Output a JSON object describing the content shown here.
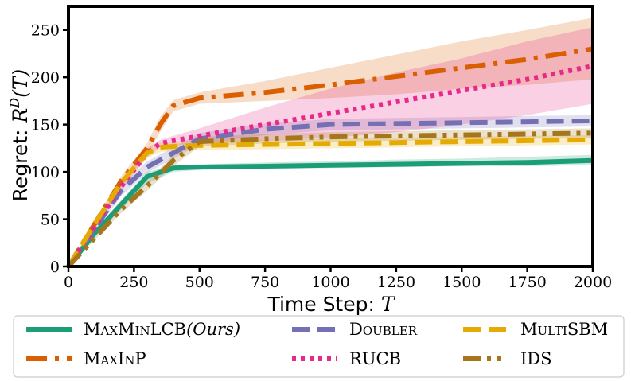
{
  "chart_data": {
    "type": "line",
    "title": "",
    "xlabel": {
      "prefix": "Time Step: ",
      "math": "T"
    },
    "ylabel": {
      "prefix": "Regret: ",
      "math": "R",
      "sup": "D",
      "suffix": "(T)"
    },
    "xlim": [
      0,
      2000
    ],
    "ylim": [
      0,
      275
    ],
    "xticks": [
      0,
      250,
      500,
      750,
      1000,
      1250,
      1500,
      1750,
      2000
    ],
    "yticks": [
      0,
      50,
      100,
      150,
      200,
      250
    ],
    "grid": false,
    "legend_position": "below plot, 3 columns",
    "series": [
      {
        "name": "MaxMinLCB(Ours)",
        "legend": {
          "sc": "MaxMinLCB",
          "italic": "(Ours)"
        },
        "color": "#1b9e77",
        "dash": "solid",
        "x": [
          0,
          100,
          200,
          300,
          400,
          500,
          750,
          1000,
          1250,
          1500,
          1750,
          2000
        ],
        "y": [
          0,
          35,
          65,
          95,
          104,
          105,
          106,
          107,
          108,
          109,
          110,
          112
        ],
        "band_lo": [
          0,
          32,
          60,
          88,
          100,
          102,
          103,
          104,
          105,
          106,
          106,
          107
        ],
        "band_hi": [
          0,
          38,
          70,
          100,
          107,
          108,
          110,
          111,
          113,
          114,
          116,
          118
        ]
      },
      {
        "name": "MaxInP",
        "legend": {
          "sc": "MaxInP",
          "italic": ""
        },
        "color": "#d95f02",
        "dash": "dashdot",
        "x": [
          0,
          100,
          200,
          300,
          350,
          400,
          500,
          750,
          1000,
          1250,
          1500,
          1750,
          2000
        ],
        "y": [
          0,
          45,
          90,
          125,
          150,
          170,
          178,
          184,
          192,
          201,
          210,
          219,
          230
        ],
        "band_lo": [
          0,
          42,
          85,
          118,
          142,
          164,
          172,
          175,
          178,
          182,
          188,
          192,
          198
        ],
        "band_hi": [
          0,
          48,
          95,
          130,
          158,
          176,
          184,
          196,
          210,
          224,
          238,
          250,
          263
        ]
      },
      {
        "name": "Doubler",
        "legend": {
          "sc": "Doubler",
          "italic": ""
        },
        "color": "#7570b3",
        "dash": "dashed",
        "x": [
          0,
          100,
          200,
          300,
          400,
          500,
          750,
          1000,
          1250,
          1500,
          1750,
          2000
        ],
        "y": [
          0,
          40,
          80,
          105,
          120,
          135,
          145,
          150,
          151,
          152,
          153,
          154
        ],
        "band_lo": [
          0,
          37,
          74,
          99,
          114,
          129,
          139,
          144,
          145,
          146,
          147,
          148
        ],
        "band_hi": [
          0,
          43,
          86,
          111,
          126,
          141,
          151,
          156,
          157,
          158,
          159,
          160
        ]
      },
      {
        "name": "RUCB",
        "legend": {
          "sc": "RUCB",
          "italic": ""
        },
        "color": "#e7298a",
        "dash": "dotted",
        "x": [
          0,
          100,
          200,
          300,
          350,
          400,
          500,
          750,
          1000,
          1250,
          1500,
          1750,
          2000
        ],
        "y": [
          0,
          42,
          84,
          120,
          130,
          133,
          138,
          150,
          162,
          174,
          186,
          198,
          212
        ],
        "band_lo": [
          0,
          40,
          80,
          115,
          126,
          128,
          130,
          133,
          136,
          142,
          150,
          160,
          172
        ],
        "band_hi": [
          0,
          44,
          88,
          125,
          134,
          138,
          146,
          168,
          188,
          205,
          220,
          238,
          253
        ]
      },
      {
        "name": "MultiSBM",
        "legend": {
          "sc": "MultiSBM",
          "italic": ""
        },
        "color": "#e6ab02",
        "dash": "dashed",
        "x": [
          0,
          100,
          200,
          300,
          350,
          400,
          500,
          750,
          1000,
          1250,
          1500,
          1750,
          2000
        ],
        "y": [
          0,
          45,
          88,
          120,
          126,
          127,
          128,
          129,
          130,
          131,
          132,
          133,
          134
        ],
        "band_lo": [
          0,
          42,
          84,
          115,
          121,
          122,
          123,
          124,
          125,
          126,
          127,
          128,
          129
        ],
        "band_hi": [
          0,
          48,
          92,
          125,
          131,
          132,
          133,
          134,
          135,
          136,
          137,
          138,
          139
        ]
      },
      {
        "name": "IDS",
        "legend": {
          "sc": "IDS",
          "italic": ""
        },
        "color": "#a6761d",
        "dash": "dashdotdot",
        "x": [
          0,
          100,
          200,
          300,
          400,
          500,
          750,
          1000,
          1250,
          1500,
          1750,
          2000
        ],
        "y": [
          0,
          30,
          60,
          85,
          112,
          132,
          135,
          137,
          138,
          139,
          140,
          141
        ],
        "band_lo": [
          0,
          28,
          56,
          80,
          106,
          127,
          130,
          132,
          133,
          134,
          135,
          136
        ],
        "band_hi": [
          0,
          32,
          64,
          90,
          118,
          137,
          140,
          142,
          143,
          144,
          145,
          146
        ]
      }
    ]
  }
}
